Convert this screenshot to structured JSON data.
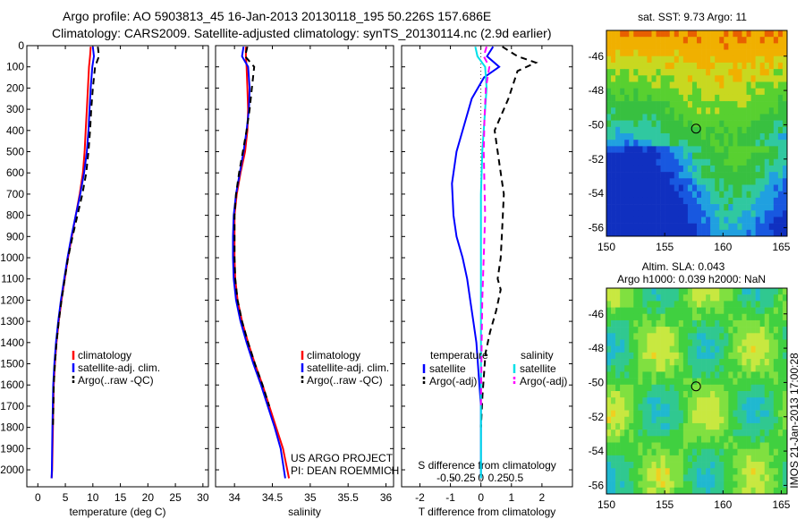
{
  "header": {
    "line1": "Argo profile: AO 5903813_45 16-Jan-2013 20130118_195 50.226S 157.686E",
    "line2": "Climatology: CARS2009. Satellite-adjusted climatology: synTS_20130114.nc (2.9d earlier)"
  },
  "colors": {
    "climatology": "#ff0000",
    "satellite": "#0000ff",
    "argo": "#000000",
    "sat_salinity": "#00e0e8",
    "argo_salinity": "#ff00ff"
  },
  "chart_data": [
    {
      "type": "line",
      "panel": "temperature",
      "xlabel": "temperature (deg C)",
      "ylabel": "",
      "xlim": [
        -2,
        31
      ],
      "ylim": [
        2080,
        0
      ],
      "xticks": [
        "0",
        "5",
        "10",
        "15",
        "20",
        "25",
        "30"
      ],
      "yticks": [
        "0",
        "100",
        "200",
        "300",
        "400",
        "500",
        "600",
        "700",
        "800",
        "900",
        "1000",
        "1100",
        "1200",
        "1300",
        "1400",
        "1500",
        "1600",
        "1700",
        "1800",
        "1900",
        "2000"
      ],
      "legend": [
        "climatology",
        "satellite-adj. clim.",
        "Argo(..raw -QC)"
      ],
      "legend_position": "lower-center",
      "series": [
        {
          "name": "climatology",
          "color": "#ff0000",
          "dash": "solid",
          "x": [
            9.6,
            9.5,
            9.3,
            9.1,
            8.9,
            8.7,
            8.5,
            8.2,
            7.6,
            6.9,
            6.2,
            5.5,
            4.9,
            4.3,
            3.8,
            3.4,
            3.1,
            2.9,
            2.75,
            2.6,
            2.5
          ],
          "y": [
            5,
            50,
            100,
            200,
            300,
            400,
            500,
            600,
            700,
            800,
            900,
            1000,
            1100,
            1200,
            1300,
            1400,
            1500,
            1600,
            1800,
            2000,
            2040
          ]
        },
        {
          "name": "satellite-adj. clim.",
          "color": "#0000ff",
          "dash": "solid",
          "x": [
            10.0,
            10.2,
            9.9,
            9.6,
            9.4,
            9.2,
            8.9,
            8.4,
            7.7,
            6.9,
            6.1,
            5.4,
            4.8,
            4.2,
            3.7,
            3.3,
            3.0,
            2.8,
            2.65,
            2.55,
            2.5
          ],
          "y": [
            5,
            50,
            100,
            200,
            300,
            400,
            500,
            600,
            700,
            800,
            900,
            1000,
            1100,
            1200,
            1300,
            1400,
            1500,
            1600,
            1800,
            2000,
            2040
          ]
        },
        {
          "name": "Argo(..raw -QC)",
          "color": "#000000",
          "dash": "dashed",
          "x": [
            10.9,
            11.1,
            10.4,
            10.0,
            9.7,
            9.5,
            9.2,
            8.8,
            8.1,
            7.2,
            6.3,
            5.5,
            4.9,
            4.3,
            3.8,
            3.4,
            3.1,
            2.9,
            2.75
          ],
          "y": [
            5,
            50,
            100,
            200,
            300,
            400,
            500,
            600,
            700,
            800,
            900,
            1000,
            1100,
            1200,
            1300,
            1400,
            1500,
            1600,
            1800
          ]
        }
      ]
    },
    {
      "type": "line",
      "panel": "salinity",
      "xlabel": "salinity",
      "ylabel": "",
      "xlim": [
        33.75,
        36.1
      ],
      "ylim": [
        2080,
        0
      ],
      "xticks": [
        "34",
        "34.5",
        "35",
        "35.5",
        "36"
      ],
      "legend": [
        "climatology",
        "satellite-adj. clim.",
        "Argo(..raw -QC)"
      ],
      "legend_position": "lower-center",
      "annotation": [
        "US ARGO PROJECT",
        "PI: DEAN ROEMMICH"
      ],
      "series": [
        {
          "name": "climatology",
          "color": "#ff0000",
          "dash": "solid",
          "x": [
            34.15,
            34.15,
            34.16,
            34.17,
            34.18,
            34.17,
            34.14,
            34.08,
            34.03,
            34.0,
            34.0,
            34.0,
            34.01,
            34.04,
            34.1,
            34.18,
            34.27,
            34.37,
            34.46,
            34.55,
            34.64,
            34.72
          ],
          "y": [
            5,
            50,
            100,
            200,
            300,
            400,
            500,
            600,
            700,
            800,
            900,
            1000,
            1100,
            1200,
            1300,
            1400,
            1500,
            1600,
            1700,
            1800,
            1900,
            2040
          ]
        },
        {
          "name": "satellite-adj. clim.",
          "color": "#0000ff",
          "dash": "solid",
          "x": [
            34.12,
            34.1,
            34.18,
            34.2,
            34.19,
            34.16,
            34.12,
            34.07,
            34.02,
            33.99,
            33.98,
            33.98,
            33.99,
            34.02,
            34.08,
            34.16,
            34.25,
            34.35,
            34.44,
            34.53,
            34.61,
            34.67
          ],
          "y": [
            5,
            50,
            100,
            200,
            300,
            400,
            500,
            600,
            700,
            800,
            900,
            1000,
            1100,
            1200,
            1300,
            1400,
            1500,
            1600,
            1700,
            1800,
            1900,
            2040
          ]
        },
        {
          "name": "Argo(..raw -QC)",
          "color": "#000000",
          "dash": "dashed",
          "x": [
            34.17,
            34.14,
            34.26,
            34.23,
            34.2,
            34.16,
            34.11,
            34.06,
            34.02,
            34.0,
            34.0,
            34.0,
            34.01,
            34.04,
            34.1,
            34.18,
            34.27,
            34.37,
            34.46
          ],
          "y": [
            5,
            50,
            100,
            200,
            300,
            400,
            500,
            600,
            700,
            800,
            900,
            1000,
            1100,
            1200,
            1300,
            1400,
            1500,
            1600,
            1700
          ]
        }
      ]
    },
    {
      "type": "line",
      "panel": "difference",
      "xlabel": "T difference from climatology",
      "xlabel_top": "S difference from climatology",
      "xlim_T": [
        -2.6,
        3.0
      ],
      "xticks_T": [
        "-2",
        "-1",
        "0",
        "1",
        "2"
      ],
      "xticks_S": [
        "-0.5",
        "-0.25",
        "0",
        "0.25",
        "0.5"
      ],
      "ylim": [
        2080,
        0
      ],
      "legend_temperature_title": "temperature",
      "legend_salinity_title": "salinity",
      "legend_temperature": [
        "satellite",
        "Argo(-adj)"
      ],
      "legend_salinity": [
        "satellite",
        "Argo(-adj)"
      ],
      "series": [
        {
          "name": "satellite",
          "group": "temperature",
          "color": "#0000ff",
          "dash": "solid",
          "x": [
            0.4,
            0.2,
            0.6,
            0.1,
            -0.3,
            -0.5,
            -0.8,
            -0.95,
            -0.9,
            -0.8,
            -0.6,
            -0.45,
            -0.35,
            -0.25,
            -0.15,
            -0.1,
            -0.05,
            0.0,
            0.0,
            0.0
          ],
          "y": [
            5,
            50,
            100,
            150,
            250,
            350,
            500,
            650,
            800,
            900,
            1000,
            1100,
            1200,
            1300,
            1400,
            1500,
            1600,
            1700,
            1900,
            2040
          ]
        },
        {
          "name": "Argo(-adj)",
          "group": "temperature",
          "color": "#000000",
          "dash": "dashed",
          "x": [
            0.7,
            1.2,
            1.8,
            1.2,
            0.9,
            0.45,
            0.6,
            0.75,
            0.7,
            0.65,
            0.55,
            0.65,
            0.5,
            0.3,
            0.15,
            0.1,
            0.05,
            0.0
          ],
          "y": [
            5,
            50,
            80,
            120,
            250,
            400,
            550,
            700,
            850,
            1000,
            1100,
            1150,
            1250,
            1350,
            1450,
            1550,
            1650,
            1800
          ]
        },
        {
          "name": "satellite",
          "group": "salinity",
          "color": "#00e0e8",
          "dash": "solid",
          "x": [
            -0.08,
            -0.05,
            0.06,
            0.08,
            0.05,
            0.02,
            0.0,
            0.0,
            0.0,
            0.0,
            0.0,
            0.0,
            0.0
          ],
          "y": [
            5,
            50,
            100,
            200,
            350,
            500,
            700,
            900,
            1100,
            1300,
            1500,
            1800,
            2040
          ]
        },
        {
          "name": "Argo(-adj)",
          "group": "salinity",
          "color": "#ff00ff",
          "dash": "dashed",
          "x": [
            0.08,
            0.04,
            0.12,
            0.07,
            0.05,
            0.04,
            0.05,
            0.06,
            0.04,
            0.02,
            0.01,
            0.0
          ],
          "y": [
            5,
            50,
            100,
            200,
            350,
            500,
            650,
            800,
            1000,
            1200,
            1400,
            1700
          ]
        }
      ]
    },
    {
      "type": "heatmap",
      "panel": "sst_map",
      "title": "sat. SST: 9.73 Argo: 11",
      "xlim": [
        150,
        165.5
      ],
      "ylim": [
        -56.5,
        -44.5
      ],
      "xticks": [
        "150",
        "155",
        "160",
        "165"
      ],
      "yticks": [
        "-46",
        "-48",
        "-50",
        "-52",
        "-54",
        "-56"
      ],
      "argo_position": {
        "lon": 157.686,
        "lat": -50.226
      }
    },
    {
      "type": "heatmap",
      "panel": "sla_map",
      "title": [
        "Altim. SLA: 0.043",
        "Argo h1000: 0.039 h2000: NaN"
      ],
      "side_label": "IMOS 21-Jan-2013 17:00:28",
      "xlim": [
        150,
        165.5
      ],
      "ylim": [
        -56.5,
        -44.5
      ],
      "xticks": [
        "150",
        "155",
        "160",
        "165"
      ],
      "yticks": [
        "-46",
        "-48",
        "-50",
        "-52",
        "-54",
        "-56"
      ],
      "argo_position": {
        "lon": 157.686,
        "lat": -50.226
      }
    }
  ]
}
